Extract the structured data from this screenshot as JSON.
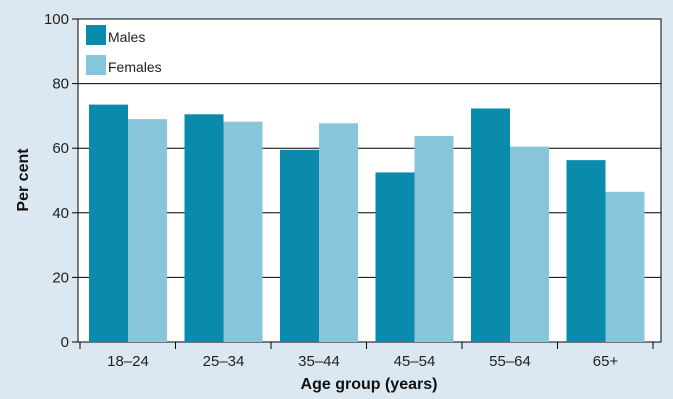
{
  "chart_data": {
    "type": "bar",
    "categories": [
      "18–24",
      "25–34",
      "35–44",
      "45–54",
      "55–64",
      "65+"
    ],
    "series": [
      {
        "name": "Males",
        "values": [
          73.5,
          70.5,
          59.5,
          52.5,
          72.3,
          56.3
        ],
        "color": "#0a8bab"
      },
      {
        "name": "Females",
        "values": [
          69,
          68.2,
          67.7,
          63.8,
          60.5,
          46.5
        ],
        "color": "#87c5da"
      }
    ],
    "title": "",
    "xlabel": "Age group (years)",
    "ylabel": "Per cent",
    "ylim": [
      0,
      100
    ],
    "yticks": [
      0,
      20,
      40,
      60,
      80,
      100
    ],
    "grid": true,
    "legend_position": "top-left"
  },
  "colors": {
    "background": "#dce8f1",
    "plot_area": "#ffffff",
    "gridline": "#000000"
  }
}
